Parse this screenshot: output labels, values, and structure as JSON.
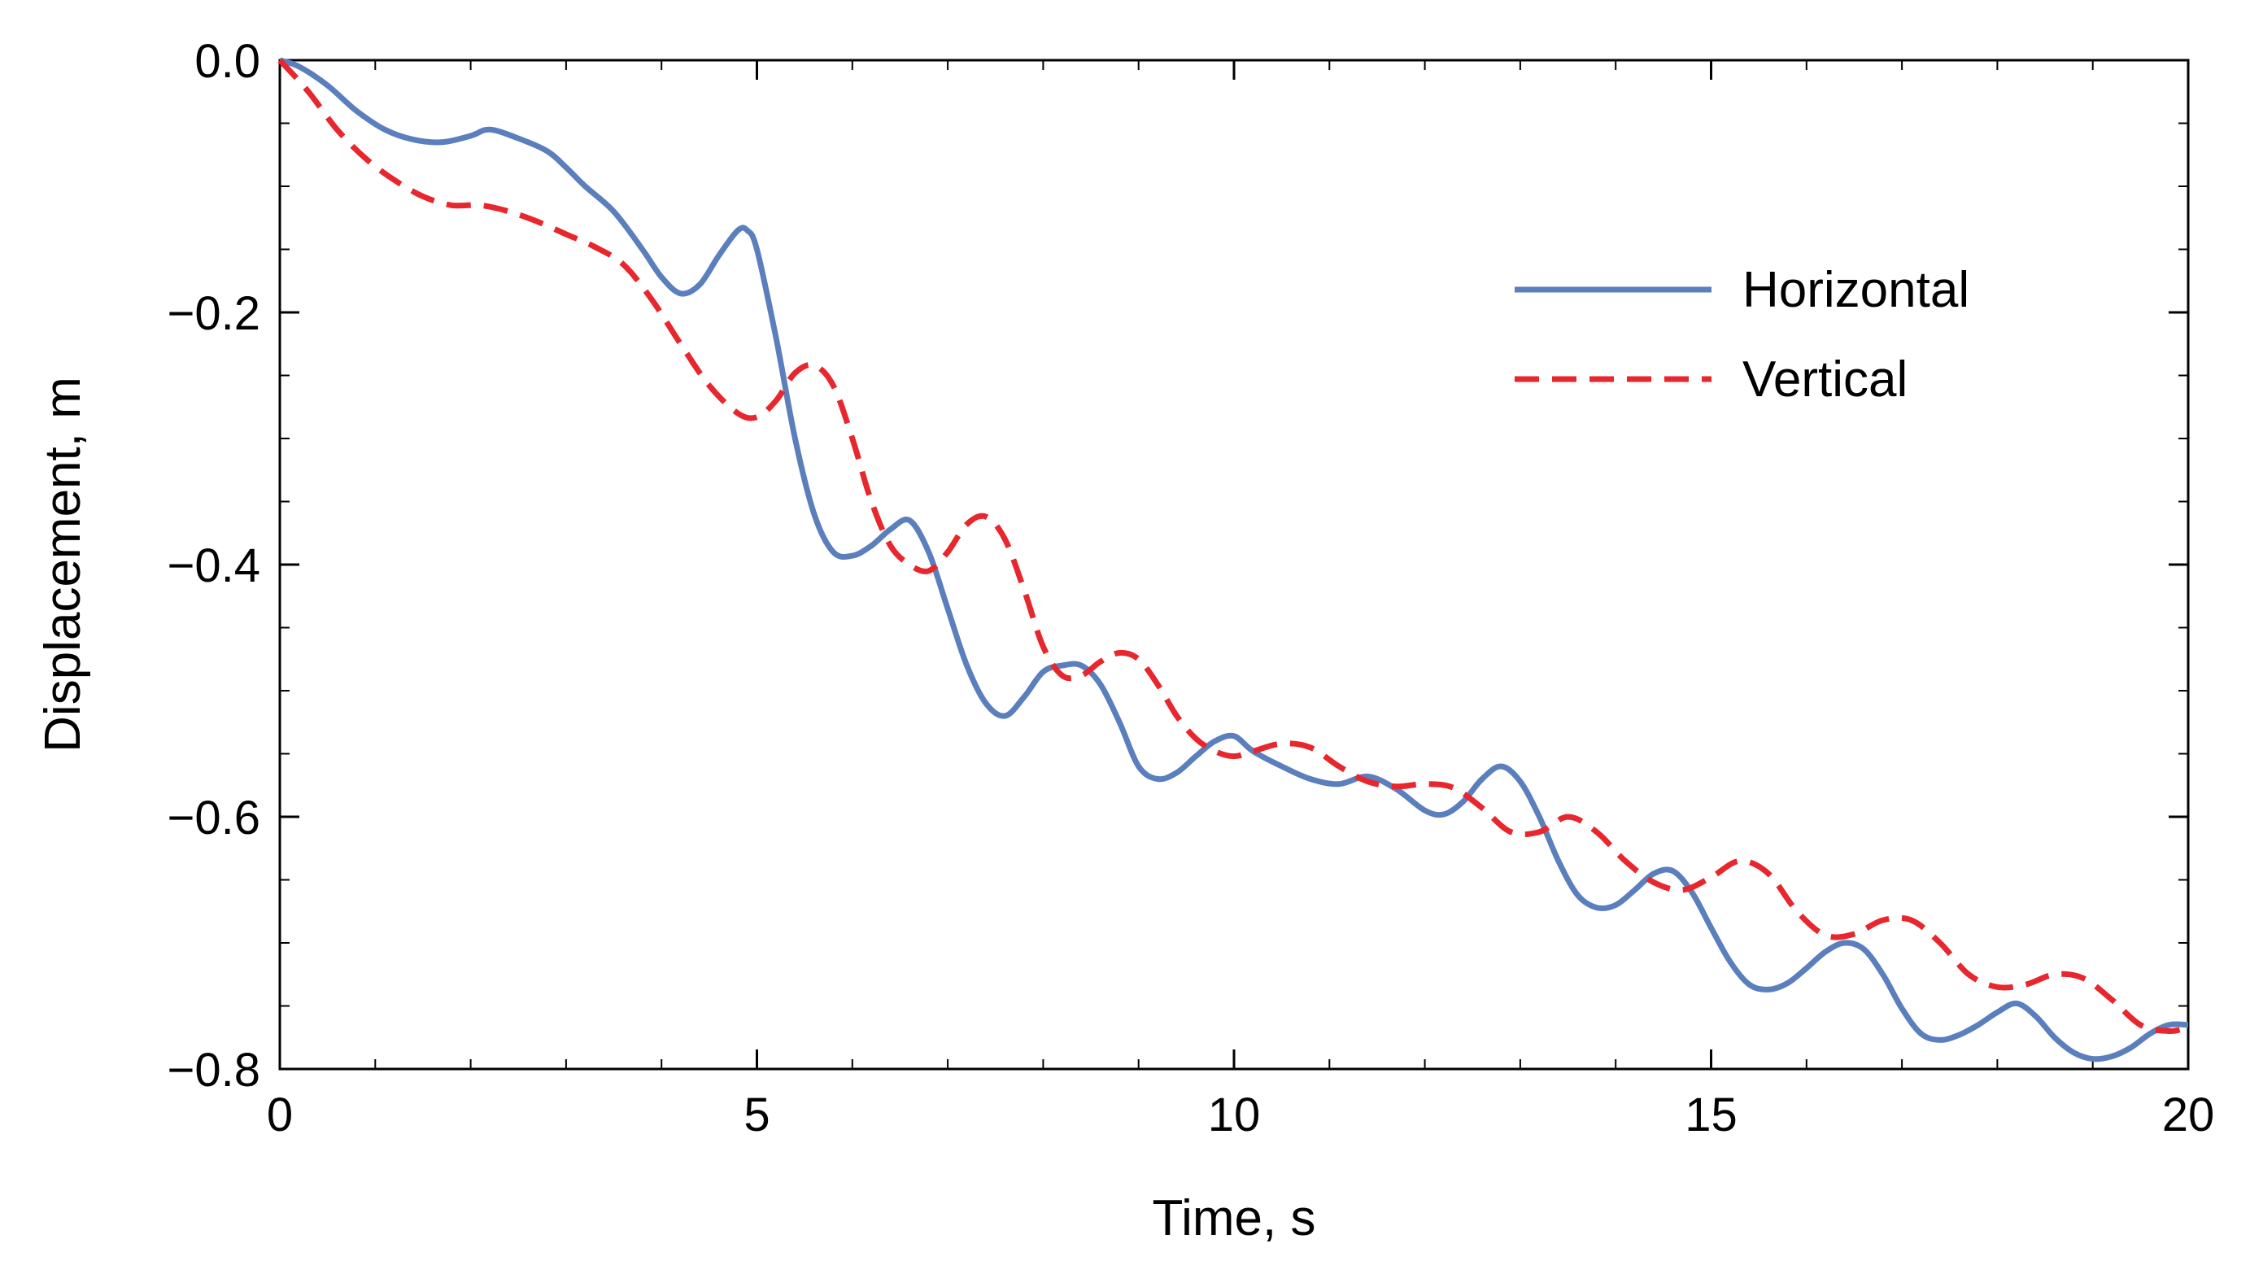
{
  "chart_data": {
    "type": "line",
    "xlabel": "Time, s",
    "ylabel": "Displacement, m",
    "xlim": [
      0,
      20
    ],
    "ylim": [
      -0.8,
      0.0
    ],
    "x_ticks": [
      0,
      5,
      10,
      15,
      20
    ],
    "x_tick_labels": [
      "0",
      "5",
      "10",
      "15",
      "20"
    ],
    "y_ticks": [
      0.0,
      -0.2,
      -0.4,
      -0.6,
      -0.8
    ],
    "y_tick_labels": [
      "0.0",
      "−0.2",
      "−0.4",
      "−0.6",
      "−0.8"
    ],
    "grid": false,
    "legend_position": "top-right",
    "series": [
      {
        "name": "Horizontal",
        "color": "#5b7fbd",
        "dash": "solid",
        "x": [
          0,
          0.2,
          0.5,
          0.8,
          1.1,
          1.4,
          1.7,
          2.0,
          2.2,
          2.5,
          2.8,
          3.0,
          3.2,
          3.5,
          3.8,
          4.0,
          4.2,
          4.4,
          4.6,
          4.8,
          4.9,
          5.0,
          5.2,
          5.4,
          5.6,
          5.8,
          6.0,
          6.2,
          6.4,
          6.6,
          6.8,
          7.0,
          7.2,
          7.4,
          7.6,
          7.8,
          8.0,
          8.2,
          8.4,
          8.6,
          8.8,
          9.0,
          9.2,
          9.4,
          9.6,
          9.8,
          10.0,
          10.2,
          10.5,
          10.8,
          11.1,
          11.4,
          11.7,
          12.0,
          12.2,
          12.4,
          12.6,
          12.8,
          13.0,
          13.2,
          13.4,
          13.6,
          13.8,
          14.0,
          14.2,
          14.4,
          14.6,
          14.8,
          15.0,
          15.2,
          15.4,
          15.6,
          15.8,
          16.0,
          16.2,
          16.4,
          16.6,
          16.8,
          17.0,
          17.2,
          17.4,
          17.6,
          17.8,
          18.0,
          18.2,
          18.4,
          18.6,
          18.8,
          19.0,
          19.2,
          19.4,
          19.6,
          19.8,
          20.0
        ],
        "y": [
          0.0,
          -0.005,
          -0.02,
          -0.04,
          -0.055,
          -0.063,
          -0.065,
          -0.06,
          -0.055,
          -0.062,
          -0.072,
          -0.085,
          -0.1,
          -0.12,
          -0.15,
          -0.172,
          -0.185,
          -0.178,
          -0.155,
          -0.135,
          -0.135,
          -0.15,
          -0.22,
          -0.3,
          -0.36,
          -0.39,
          -0.393,
          -0.385,
          -0.372,
          -0.365,
          -0.39,
          -0.435,
          -0.48,
          -0.51,
          -0.52,
          -0.505,
          -0.485,
          -0.48,
          -0.48,
          -0.495,
          -0.525,
          -0.56,
          -0.57,
          -0.565,
          -0.552,
          -0.54,
          -0.536,
          -0.548,
          -0.56,
          -0.57,
          -0.574,
          -0.568,
          -0.578,
          -0.595,
          -0.598,
          -0.588,
          -0.57,
          -0.56,
          -0.572,
          -0.6,
          -0.635,
          -0.662,
          -0.672,
          -0.67,
          -0.658,
          -0.645,
          -0.643,
          -0.66,
          -0.688,
          -0.715,
          -0.733,
          -0.737,
          -0.732,
          -0.72,
          -0.707,
          -0.7,
          -0.705,
          -0.725,
          -0.752,
          -0.772,
          -0.777,
          -0.773,
          -0.765,
          -0.755,
          -0.748,
          -0.758,
          -0.775,
          -0.787,
          -0.792,
          -0.79,
          -0.783,
          -0.772,
          -0.765,
          -0.765
        ]
      },
      {
        "name": "Vertical",
        "color": "#e8262d",
        "dash": "dashed",
        "x": [
          0,
          0.3,
          0.6,
          0.9,
          1.2,
          1.5,
          1.8,
          2.1,
          2.4,
          2.7,
          3.0,
          3.3,
          3.6,
          3.9,
          4.2,
          4.5,
          4.8,
          5.0,
          5.2,
          5.4,
          5.6,
          5.8,
          6.0,
          6.2,
          6.4,
          6.6,
          6.8,
          7.0,
          7.2,
          7.4,
          7.6,
          7.8,
          8.0,
          8.2,
          8.4,
          8.6,
          8.8,
          9.0,
          9.2,
          9.4,
          9.6,
          9.8,
          10.0,
          10.2,
          10.5,
          10.8,
          11.1,
          11.4,
          11.7,
          12.0,
          12.3,
          12.6,
          12.9,
          13.2,
          13.5,
          13.8,
          14.1,
          14.4,
          14.7,
          15.0,
          15.3,
          15.6,
          15.9,
          16.2,
          16.5,
          16.8,
          17.1,
          17.4,
          17.7,
          18.0,
          18.3,
          18.6,
          18.9,
          19.2,
          19.5,
          19.8,
          20.0
        ],
        "y": [
          0.0,
          -0.025,
          -0.055,
          -0.078,
          -0.095,
          -0.108,
          -0.115,
          -0.115,
          -0.12,
          -0.128,
          -0.138,
          -0.148,
          -0.162,
          -0.19,
          -0.225,
          -0.258,
          -0.28,
          -0.283,
          -0.27,
          -0.248,
          -0.242,
          -0.258,
          -0.3,
          -0.35,
          -0.385,
          -0.4,
          -0.405,
          -0.39,
          -0.368,
          -0.362,
          -0.38,
          -0.42,
          -0.465,
          -0.488,
          -0.488,
          -0.477,
          -0.47,
          -0.475,
          -0.495,
          -0.52,
          -0.538,
          -0.548,
          -0.552,
          -0.548,
          -0.542,
          -0.545,
          -0.56,
          -0.572,
          -0.576,
          -0.574,
          -0.577,
          -0.593,
          -0.612,
          -0.612,
          -0.6,
          -0.612,
          -0.635,
          -0.652,
          -0.658,
          -0.648,
          -0.635,
          -0.645,
          -0.675,
          -0.694,
          -0.693,
          -0.682,
          -0.682,
          -0.7,
          -0.725,
          -0.735,
          -0.733,
          -0.725,
          -0.728,
          -0.745,
          -0.765,
          -0.77,
          -0.767
        ]
      }
    ]
  }
}
